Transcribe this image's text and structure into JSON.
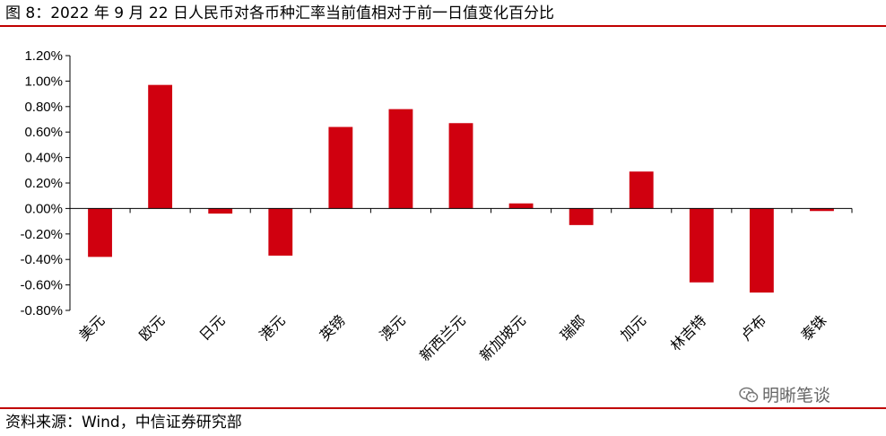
{
  "header": {
    "title": "图 8：2022 年 9 月 22 日人民币对各币种汇率当前值相对于前一日值变化百分比"
  },
  "footer": {
    "source": "资料来源：Wind，中信证券研究部"
  },
  "watermark": {
    "label": "明晰笔谈",
    "icon": "wechat-icon"
  },
  "colors": {
    "bar": "#d0000f",
    "rule": "#c00000",
    "axis": "#000000"
  },
  "chart_data": {
    "type": "bar",
    "title": "",
    "xlabel": "",
    "ylabel": "",
    "categories": [
      "美元",
      "欧元",
      "日元",
      "港元",
      "英镑",
      "澳元",
      "新西兰元",
      "新加坡元",
      "瑞郎",
      "加元",
      "林吉特",
      "卢布",
      "泰铢"
    ],
    "values": [
      -0.38,
      0.97,
      -0.04,
      -0.37,
      0.64,
      0.78,
      0.67,
      0.04,
      -0.13,
      0.29,
      -0.58,
      -0.66,
      -0.02
    ],
    "ylim": [
      -0.8,
      1.2
    ],
    "yticks": [
      1.2,
      1.0,
      0.8,
      0.6,
      0.4,
      0.2,
      0.0,
      -0.2,
      -0.4,
      -0.6,
      -0.8
    ],
    "ytick_labels": [
      "1.20%",
      "1.00%",
      "0.80%",
      "0.60%",
      "0.40%",
      "0.20%",
      "0.00%",
      "-0.20%",
      "-0.40%",
      "-0.60%",
      "-0.80%"
    ],
    "grid": false,
    "legend": "none"
  }
}
